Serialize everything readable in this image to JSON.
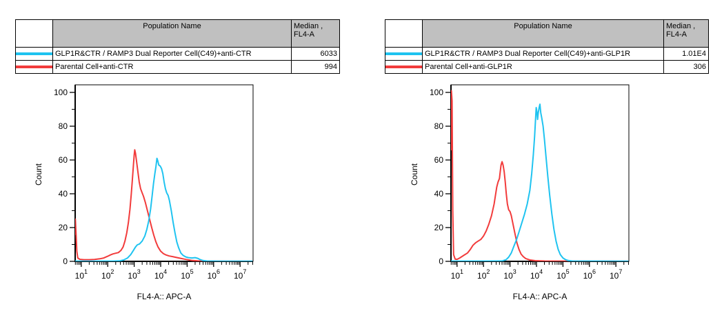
{
  "colors": {
    "series_cyan": "#1fc3f0",
    "series_red": "#f23b3b",
    "table_header_bg": "#c0c0c0",
    "axis": "#000000",
    "background": "#ffffff"
  },
  "legend_tables": [
    {
      "header": {
        "population": "Population Name",
        "median_line1": "Median ,",
        "median_line2": "FL4-A"
      },
      "rows": [
        {
          "swatch_color": "#1fc3f0",
          "population": "GLP1R&CTR / RAMP3 Dual Reporter Cell(C49)+anti-CTR",
          "median": "6033"
        },
        {
          "swatch_color": "#f23b3b",
          "population": "Parental Cell+anti-CTR",
          "median": "994"
        }
      ]
    },
    {
      "header": {
        "population": "Population Name",
        "median_line1": "Median ,",
        "median_line2": "FL4-A"
      },
      "rows": [
        {
          "swatch_color": "#1fc3f0",
          "population": "GLP1R&CTR / RAMP3 Dual Reporter Cell(C49)+anti-GLP1R",
          "median": "1.01E4"
        },
        {
          "swatch_color": "#f23b3b",
          "population": "Parental Cell+anti-GLP1R",
          "median": "306"
        }
      ]
    }
  ],
  "chart_data": [
    {
      "type": "line",
      "title": "",
      "grid": false,
      "x_axis": {
        "label": "FL4-A:: APC-A",
        "scale": "log",
        "min_log": 0.77,
        "max_log": 7.49,
        "major_tick_exponents": [
          1,
          2,
          3,
          4,
          5,
          6,
          7
        ]
      },
      "y_axis": {
        "label": "Count",
        "min": 0,
        "max": 100,
        "major_ticks": [
          0,
          20,
          40,
          60,
          80,
          100
        ],
        "minor_ticks": [
          10,
          30,
          50,
          70,
          90
        ]
      },
      "series": [
        {
          "name": "GLP1R&CTR / RAMP3 Dual Reporter Cell(C49)+anti-CTR",
          "color": "#1fc3f0",
          "median_fl4a": "6033",
          "points": [
            [
              5.9,
              0.15
            ],
            [
              158,
              0.15
            ],
            [
              282,
              0.3
            ],
            [
              398,
              0.8
            ],
            [
              562,
              2
            ],
            [
              741,
              4
            ],
            [
              933,
              6.5
            ],
            [
              1122,
              8.5
            ],
            [
              1318,
              9.8
            ],
            [
              1585,
              10.3
            ],
            [
              2000,
              12
            ],
            [
              2512,
              15
            ],
            [
              3020,
              19
            ],
            [
              3548,
              24
            ],
            [
              4169,
              31
            ],
            [
              4786,
              39
            ],
            [
              5370,
              46
            ],
            [
              6026,
              52
            ],
            [
              6607,
              56
            ],
            [
              7244,
              61
            ],
            [
              7762,
              59.5
            ],
            [
              8511,
              57
            ],
            [
              9550,
              56.5
            ],
            [
              10715,
              55
            ],
            [
              12023,
              52
            ],
            [
              13490,
              47
            ],
            [
              15136,
              43
            ],
            [
              16982,
              40.5
            ],
            [
              19055,
              39
            ],
            [
              21380,
              36
            ],
            [
              25119,
              30
            ],
            [
              29512,
              23
            ],
            [
              34674,
              17
            ],
            [
              40738,
              11.5
            ],
            [
              47863,
              8
            ],
            [
              57544,
              5
            ],
            [
              70795,
              3.5
            ],
            [
              89125,
              2.6
            ],
            [
              112202,
              2.2
            ],
            [
              151356,
              2
            ],
            [
              199526,
              2.2
            ],
            [
              251189,
              1.8
            ],
            [
              316228,
              1
            ],
            [
              398107,
              0.5
            ],
            [
              562341,
              0.2
            ],
            [
              1584893,
              0.1
            ],
            [
              28183829,
              0.1
            ]
          ]
        },
        {
          "name": "Parental Cell+anti-CTR",
          "color": "#f23b3b",
          "median_fl4a": "994",
          "points": [
            [
              5.9,
              16
            ],
            [
              6.0,
              25
            ],
            [
              6.3,
              18
            ],
            [
              6.8,
              6
            ],
            [
              7.4,
              2
            ],
            [
              8.9,
              1.2
            ],
            [
              12.6,
              1
            ],
            [
              20,
              1
            ],
            [
              31.6,
              1.1
            ],
            [
              50,
              1.5
            ],
            [
              70.8,
              2
            ],
            [
              100,
              3
            ],
            [
              126,
              3.8
            ],
            [
              158,
              4.4
            ],
            [
              200,
              4.8
            ],
            [
              251,
              5.2
            ],
            [
              316,
              6.5
            ],
            [
              380,
              8.5
            ],
            [
              447,
              12
            ],
            [
              525,
              17
            ],
            [
              603,
              23
            ],
            [
              692,
              31
            ],
            [
              776,
              40
            ],
            [
              851,
              48
            ],
            [
              933,
              57
            ],
            [
              1000,
              63
            ],
            [
              1047,
              66
            ],
            [
              1122,
              64
            ],
            [
              1230,
              59
            ],
            [
              1380,
              53
            ],
            [
              1550,
              47
            ],
            [
              1740,
              43
            ],
            [
              2000,
              40.5
            ],
            [
              2240,
              38.5
            ],
            [
              2630,
              35
            ],
            [
              3160,
              30
            ],
            [
              3800,
              25
            ],
            [
              4570,
              20
            ],
            [
              5500,
              15.5
            ],
            [
              6610,
              11.5
            ],
            [
              7940,
              8.5
            ],
            [
              10000,
              6
            ],
            [
              12600,
              4.6
            ],
            [
              15850,
              3.8
            ],
            [
              20900,
              3.2
            ],
            [
              28200,
              2.8
            ],
            [
              39800,
              2.3
            ],
            [
              56200,
              1.8
            ],
            [
              79400,
              1.3
            ],
            [
              112000,
              0.9
            ],
            [
              158500,
              0.5
            ],
            [
              251000,
              0.3
            ],
            [
              501000,
              0.15
            ],
            [
              3160000,
              0.1
            ],
            [
              28200000,
              0.1
            ]
          ]
        }
      ]
    },
    {
      "type": "line",
      "title": "",
      "grid": false,
      "x_axis": {
        "label": "FL4-A:: APC-A",
        "scale": "log",
        "min_log": 0.77,
        "max_log": 7.49,
        "major_tick_exponents": [
          1,
          2,
          3,
          4,
          5,
          6,
          7
        ]
      },
      "y_axis": {
        "label": "Count",
        "min": 0,
        "max": 100,
        "major_ticks": [
          0,
          20,
          40,
          60,
          80,
          100
        ],
        "minor_ticks": [
          10,
          30,
          50,
          70,
          90
        ]
      },
      "series": [
        {
          "name": "GLP1R&CTR / RAMP3 Dual Reporter Cell(C49)+anti-GLP1R",
          "color": "#1fc3f0",
          "median_fl4a": "1.01E4",
          "points": [
            [
              5.9,
              0.15
            ],
            [
              100,
              0.15
            ],
            [
              300,
              0.2
            ],
            [
              500,
              0.25
            ],
            [
              710,
              1
            ],
            [
              891,
              2.5
            ],
            [
              1122,
              5
            ],
            [
              1410,
              9
            ],
            [
              1780,
              13
            ],
            [
              2240,
              18
            ],
            [
              2820,
              23
            ],
            [
              3550,
              28
            ],
            [
              4470,
              34
            ],
            [
              5620,
              42
            ],
            [
              6610,
              52
            ],
            [
              7590,
              63
            ],
            [
              8510,
              74
            ],
            [
              9120,
              83
            ],
            [
              9770,
              91
            ],
            [
              10500,
              88
            ],
            [
              11000,
              84
            ],
            [
              11700,
              88
            ],
            [
              12600,
              91
            ],
            [
              13500,
              93
            ],
            [
              14500,
              88
            ],
            [
              15800,
              85
            ],
            [
              17800,
              80
            ],
            [
              20000,
              72
            ],
            [
              22900,
              62
            ],
            [
              26900,
              50
            ],
            [
              31600,
              39
            ],
            [
              38000,
              28
            ],
            [
              45700,
              19
            ],
            [
              55000,
              12
            ],
            [
              66100,
              7
            ],
            [
              79400,
              4
            ],
            [
              100000,
              2
            ],
            [
              126000,
              1
            ],
            [
              158000,
              0.5
            ],
            [
              224000,
              0.2
            ],
            [
              28183829,
              0.1
            ]
          ]
        },
        {
          "name": "Parental Cell+anti-GLP1R",
          "color": "#f23b3b",
          "median_fl4a": "306",
          "points": [
            [
              5.9,
              66
            ],
            [
              6.1,
              101
            ],
            [
              6.5,
              95
            ],
            [
              6.9,
              30
            ],
            [
              7.4,
              4
            ],
            [
              8.5,
              1.3
            ],
            [
              10,
              1.2
            ],
            [
              12.6,
              2
            ],
            [
              17.8,
              3.5
            ],
            [
              25,
              5
            ],
            [
              31.6,
              7
            ],
            [
              40,
              9.5
            ],
            [
              50,
              11
            ],
            [
              63,
              12
            ],
            [
              79,
              13
            ],
            [
              100,
              15
            ],
            [
              126,
              18
            ],
            [
              158,
              22
            ],
            [
              200,
              27
            ],
            [
              251,
              34
            ],
            [
              282,
              39
            ],
            [
              316,
              44
            ],
            [
              355,
              47
            ],
            [
              398,
              49
            ],
            [
              427,
              53
            ],
            [
              457,
              57
            ],
            [
              501,
              59
            ],
            [
              550,
              57
            ],
            [
              603,
              53
            ],
            [
              661,
              47
            ],
            [
              724,
              40
            ],
            [
              794,
              34
            ],
            [
              891,
              30.5
            ],
            [
              1000,
              29.5
            ],
            [
              1122,
              27
            ],
            [
              1260,
              23
            ],
            [
              1510,
              17
            ],
            [
              1820,
              11
            ],
            [
              2190,
              7
            ],
            [
              2630,
              4.3
            ],
            [
              3160,
              2.8
            ],
            [
              3980,
              1.6
            ],
            [
              5620,
              0.8
            ],
            [
              8910,
              0.4
            ],
            [
              20000,
              0.2
            ],
            [
              28183829,
              0.1
            ]
          ]
        }
      ]
    }
  ]
}
